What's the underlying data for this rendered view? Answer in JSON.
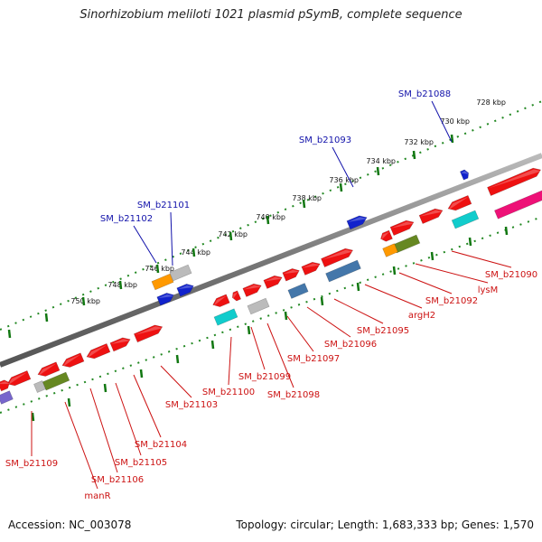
{
  "title": "Sinorhizobium meliloti 1021 plasmid pSymB, complete sequence",
  "footer": {
    "accession": "Accession: NC_003078",
    "topology": "Topology: circular; Length: 1,683,333 bp; Genes: 1,570"
  },
  "scale_labels": [
    "728 kbp",
    "730 kbp",
    "732 kbp",
    "734 kbp",
    "736 kbp",
    "738 kbp",
    "740 kbp",
    "742 kbp",
    "744 kbp",
    "746 kbp",
    "748 kbp",
    "750 kbp"
  ],
  "top_labels": [
    "SM_b21088",
    "SM_b21093",
    "SM_b21101",
    "SM_b21102"
  ],
  "bottom_labels": [
    "SM_b21090",
    "lysM",
    "SM_b21092",
    "argH2",
    "SM_b21095",
    "SM_b21096",
    "SM_b21097",
    "SM_b21098",
    "SM_b21099",
    "SM_b21100",
    "SM_b21103",
    "SM_b21104",
    "SM_b21105",
    "SM_b21106",
    "manR",
    "SM_b21109"
  ],
  "colors": {
    "gene_red": "#ee1111",
    "gene_blue": "#1122cc",
    "gene_cyan": "#11cccc",
    "gene_grey": "#bbbbbb",
    "gene_steel": "#4477aa",
    "gene_olive": "#668822",
    "gene_orange": "#ff9900",
    "gene_magenta": "#ee1177",
    "gene_purple": "#7766cc",
    "label_top": "#1111aa",
    "label_bottom": "#cc1111",
    "tick_green": "#117711",
    "backbone": "#888888"
  }
}
